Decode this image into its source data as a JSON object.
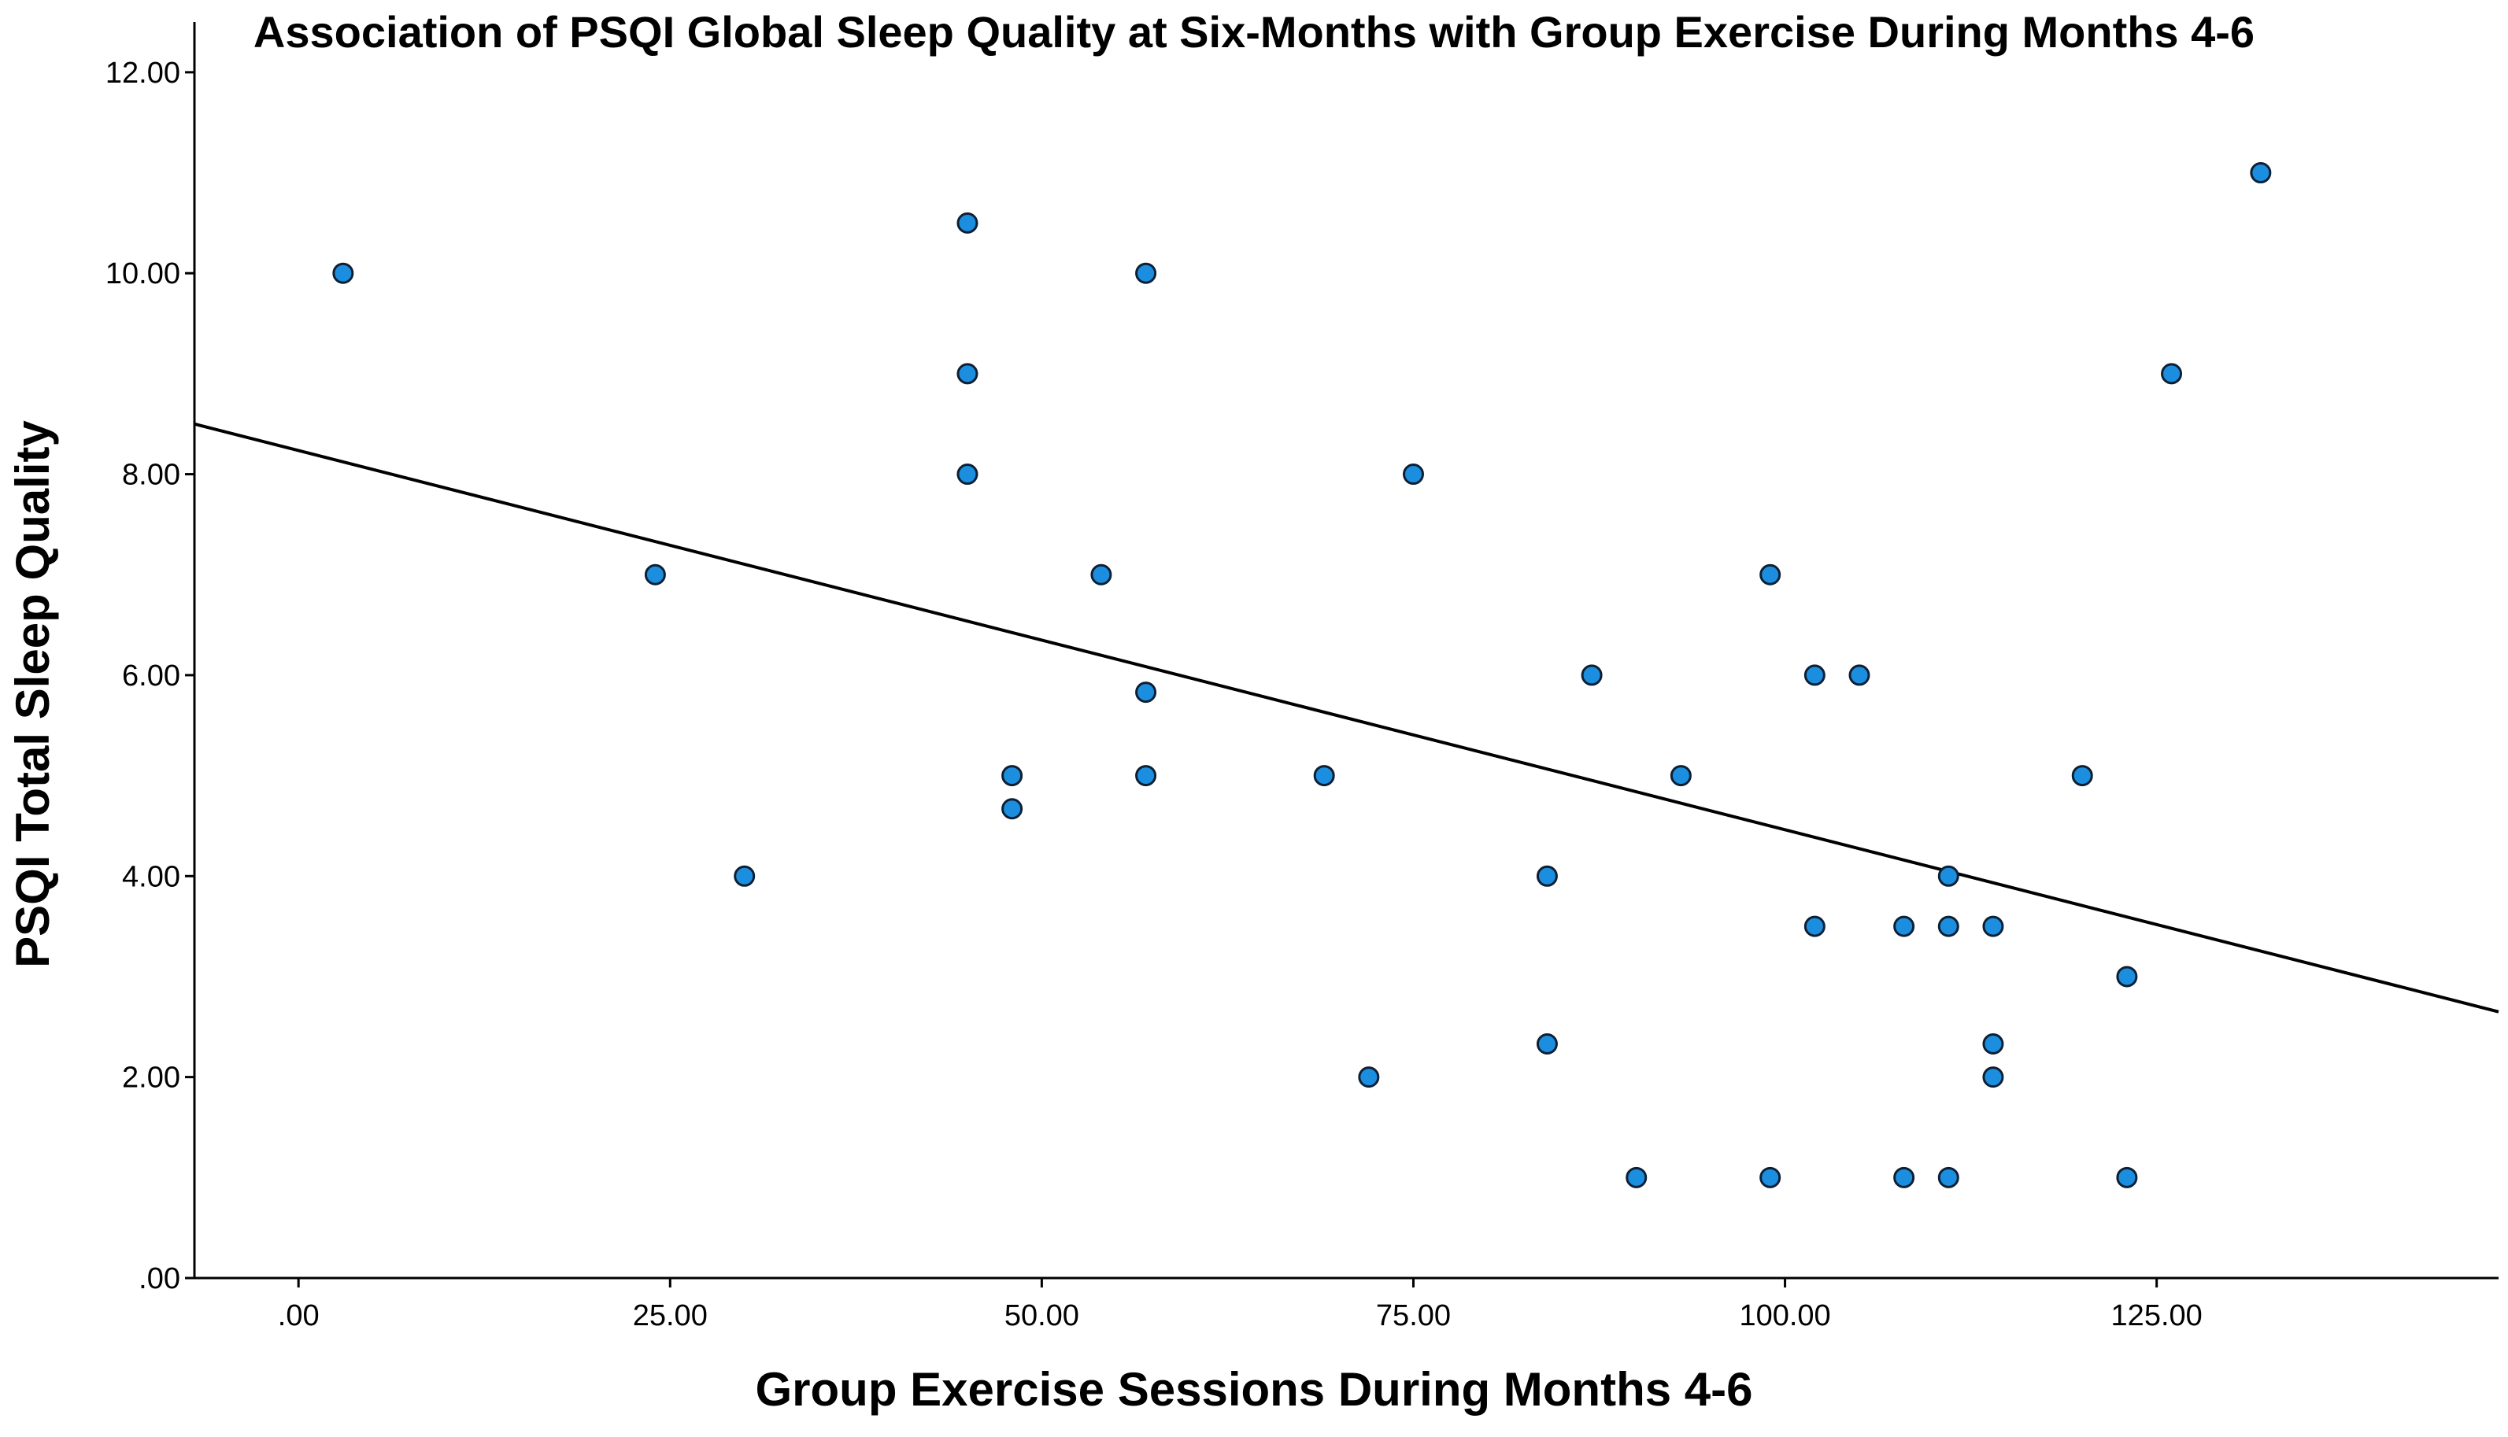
{
  "chart_data": {
    "type": "scatter",
    "title": "Association of PSQI Global Sleep Quality at Six-Months with Group Exercise During Months 4-6",
    "xlabel": "Group Exercise Sessions During Months 4-6",
    "ylabel": "PSQI Total Sleep Quality",
    "xlim": [
      -7,
      148
    ],
    "ylim": [
      0,
      12.5
    ],
    "x_ticks": [
      {
        "value": 0,
        "label": ".00"
      },
      {
        "value": 25,
        "label": "25.00"
      },
      {
        "value": 50,
        "label": "50.00"
      },
      {
        "value": 75,
        "label": "75.00"
      },
      {
        "value": 100,
        "label": "100.00"
      },
      {
        "value": 125,
        "label": "125.00"
      }
    ],
    "y_ticks": [
      {
        "value": 0,
        "label": ".00"
      },
      {
        "value": 2,
        "label": "2.00"
      },
      {
        "value": 4,
        "label": "4.00"
      },
      {
        "value": 6,
        "label": "6.00"
      },
      {
        "value": 8,
        "label": "8.00"
      },
      {
        "value": 10,
        "label": "10.00"
      },
      {
        "value": 12,
        "label": "12.00"
      }
    ],
    "points": [
      {
        "x": 3,
        "y": 10
      },
      {
        "x": 24,
        "y": 7
      },
      {
        "x": 30,
        "y": 4
      },
      {
        "x": 45,
        "y": 10.5
      },
      {
        "x": 45,
        "y": 9
      },
      {
        "x": 45,
        "y": 8
      },
      {
        "x": 48,
        "y": 5
      },
      {
        "x": 48,
        "y": 4.67
      },
      {
        "x": 54,
        "y": 7
      },
      {
        "x": 57,
        "y": 10
      },
      {
        "x": 57,
        "y": 5.83
      },
      {
        "x": 57,
        "y": 5
      },
      {
        "x": 69,
        "y": 5
      },
      {
        "x": 72,
        "y": 2
      },
      {
        "x": 75,
        "y": 8
      },
      {
        "x": 84,
        "y": 4
      },
      {
        "x": 84,
        "y": 2.33
      },
      {
        "x": 87,
        "y": 6
      },
      {
        "x": 90,
        "y": 1
      },
      {
        "x": 93,
        "y": 5
      },
      {
        "x": 99,
        "y": 7
      },
      {
        "x": 99,
        "y": 1
      },
      {
        "x": 102,
        "y": 6
      },
      {
        "x": 102,
        "y": 3.5
      },
      {
        "x": 105,
        "y": 6
      },
      {
        "x": 108,
        "y": 3.5
      },
      {
        "x": 108,
        "y": 1
      },
      {
        "x": 111,
        "y": 4
      },
      {
        "x": 111,
        "y": 3.5
      },
      {
        "x": 111,
        "y": 1
      },
      {
        "x": 114,
        "y": 3.5
      },
      {
        "x": 114,
        "y": 2.33
      },
      {
        "x": 114,
        "y": 2
      },
      {
        "x": 120,
        "y": 5
      },
      {
        "x": 123,
        "y": 3
      },
      {
        "x": 123,
        "y": 1
      },
      {
        "x": 126,
        "y": 9
      },
      {
        "x": 132,
        "y": 11
      }
    ],
    "fit_line": {
      "x": [
        -7,
        148
      ],
      "y": [
        8.5,
        2.65
      ]
    },
    "grid": false,
    "legend": "none"
  }
}
